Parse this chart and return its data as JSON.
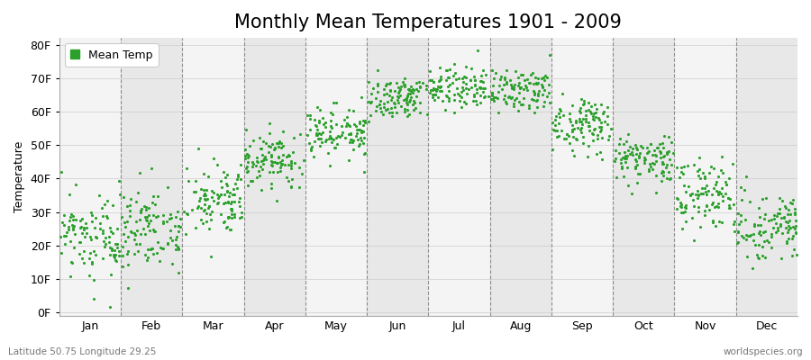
{
  "title": "Monthly Mean Temperatures 1901 - 2009",
  "ylabel": "Temperature",
  "xlabel_months": [
    "Jan",
    "Feb",
    "Mar",
    "Apr",
    "May",
    "Jun",
    "Jul",
    "Aug",
    "Sep",
    "Oct",
    "Nov",
    "Dec"
  ],
  "ytick_labels": [
    "0F",
    "10F",
    "20F",
    "30F",
    "40F",
    "50F",
    "60F",
    "70F",
    "80F"
  ],
  "ytick_values": [
    0,
    10,
    20,
    30,
    40,
    50,
    60,
    70,
    80
  ],
  "ylim": [
    -1,
    82
  ],
  "dot_color": "#2ca02c",
  "dot_size": 5,
  "background_odd": "#f4f4f4",
  "background_even": "#e8e8e8",
  "dashed_line_color": "#666666",
  "title_fontsize": 15,
  "axis_label_fontsize": 9,
  "tick_fontsize": 9,
  "legend_label": "Mean Temp",
  "footer_left": "Latitude 50.75 Longitude 29.25",
  "footer_right": "worldspecies.org",
  "monthly_mean_F": [
    22,
    25,
    33,
    45,
    54,
    64,
    67,
    66,
    56,
    46,
    35,
    26
  ],
  "monthly_std_F": [
    6,
    6,
    5,
    4,
    4,
    3,
    3,
    3,
    4,
    4,
    5,
    5
  ],
  "years": 109,
  "seed": 17
}
